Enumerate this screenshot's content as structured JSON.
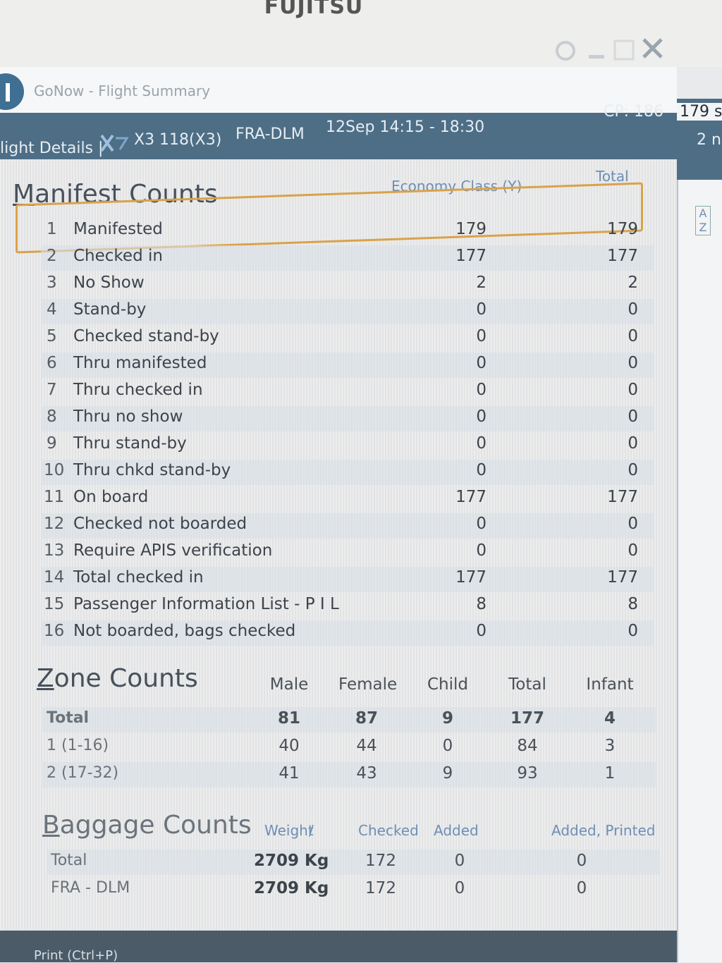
{
  "monitor": {
    "brand": "FUJITSU"
  },
  "window": {
    "title": "GoNow - Flight Summary"
  },
  "header": {
    "details": "light Details |",
    "flight": "X3 118(X3)",
    "route": "FRA-DLM",
    "time": "12Sep 14:15 - 18:30",
    "cp": "CP: 186"
  },
  "side_panel": {
    "line1": "179 s",
    "line2": "2 n",
    "sort": "A Z"
  },
  "manifest": {
    "title": "Manifest Counts",
    "columns": [
      "Economy Class (Y)",
      "Total"
    ],
    "rows": [
      [
        "1",
        "Manifested",
        179,
        179
      ],
      [
        "2",
        "Checked in",
        177,
        177
      ],
      [
        "3",
        "No Show",
        2,
        2
      ],
      [
        "4",
        "Stand-by",
        0,
        0
      ],
      [
        "5",
        "Checked stand-by",
        0,
        0
      ],
      [
        "6",
        "Thru manifested",
        0,
        0
      ],
      [
        "7",
        "Thru checked in",
        0,
        0
      ],
      [
        "8",
        "Thru no show",
        0,
        0
      ],
      [
        "9",
        "Thru stand-by",
        0,
        0
      ],
      [
        "10",
        "Thru chkd stand-by",
        0,
        0
      ],
      [
        "11",
        "On board",
        177,
        177
      ],
      [
        "12",
        "Checked not boarded",
        0,
        0
      ],
      [
        "13",
        "Require APIS verification",
        0,
        0
      ],
      [
        "14",
        "Total checked in",
        177,
        177
      ],
      [
        "15",
        "Passenger Information List - P I L",
        8,
        8
      ],
      [
        "16",
        "Not boarded, bags checked",
        0,
        0
      ]
    ]
  },
  "zones": {
    "title": "Zone Counts",
    "columns": [
      "Male",
      "Female",
      "Child",
      "Total",
      "Infant"
    ],
    "rows": [
      [
        "Total",
        81,
        87,
        9,
        177,
        4
      ],
      [
        "1 (1-16)",
        40,
        44,
        0,
        84,
        3
      ],
      [
        "2 (17-32)",
        41,
        43,
        9,
        93,
        1
      ]
    ]
  },
  "baggage": {
    "title": "Baggage Counts",
    "columns": [
      "Weight",
      "/",
      "Checked",
      "Added",
      "Added, Printed"
    ],
    "rows": [
      [
        "Total",
        "2709 Kg",
        172,
        0,
        0
      ],
      [
        "FRA - DLM",
        "2709 Kg",
        172,
        0,
        0
      ]
    ]
  },
  "footer": {
    "print": "Print (Ctrl+P)"
  }
}
